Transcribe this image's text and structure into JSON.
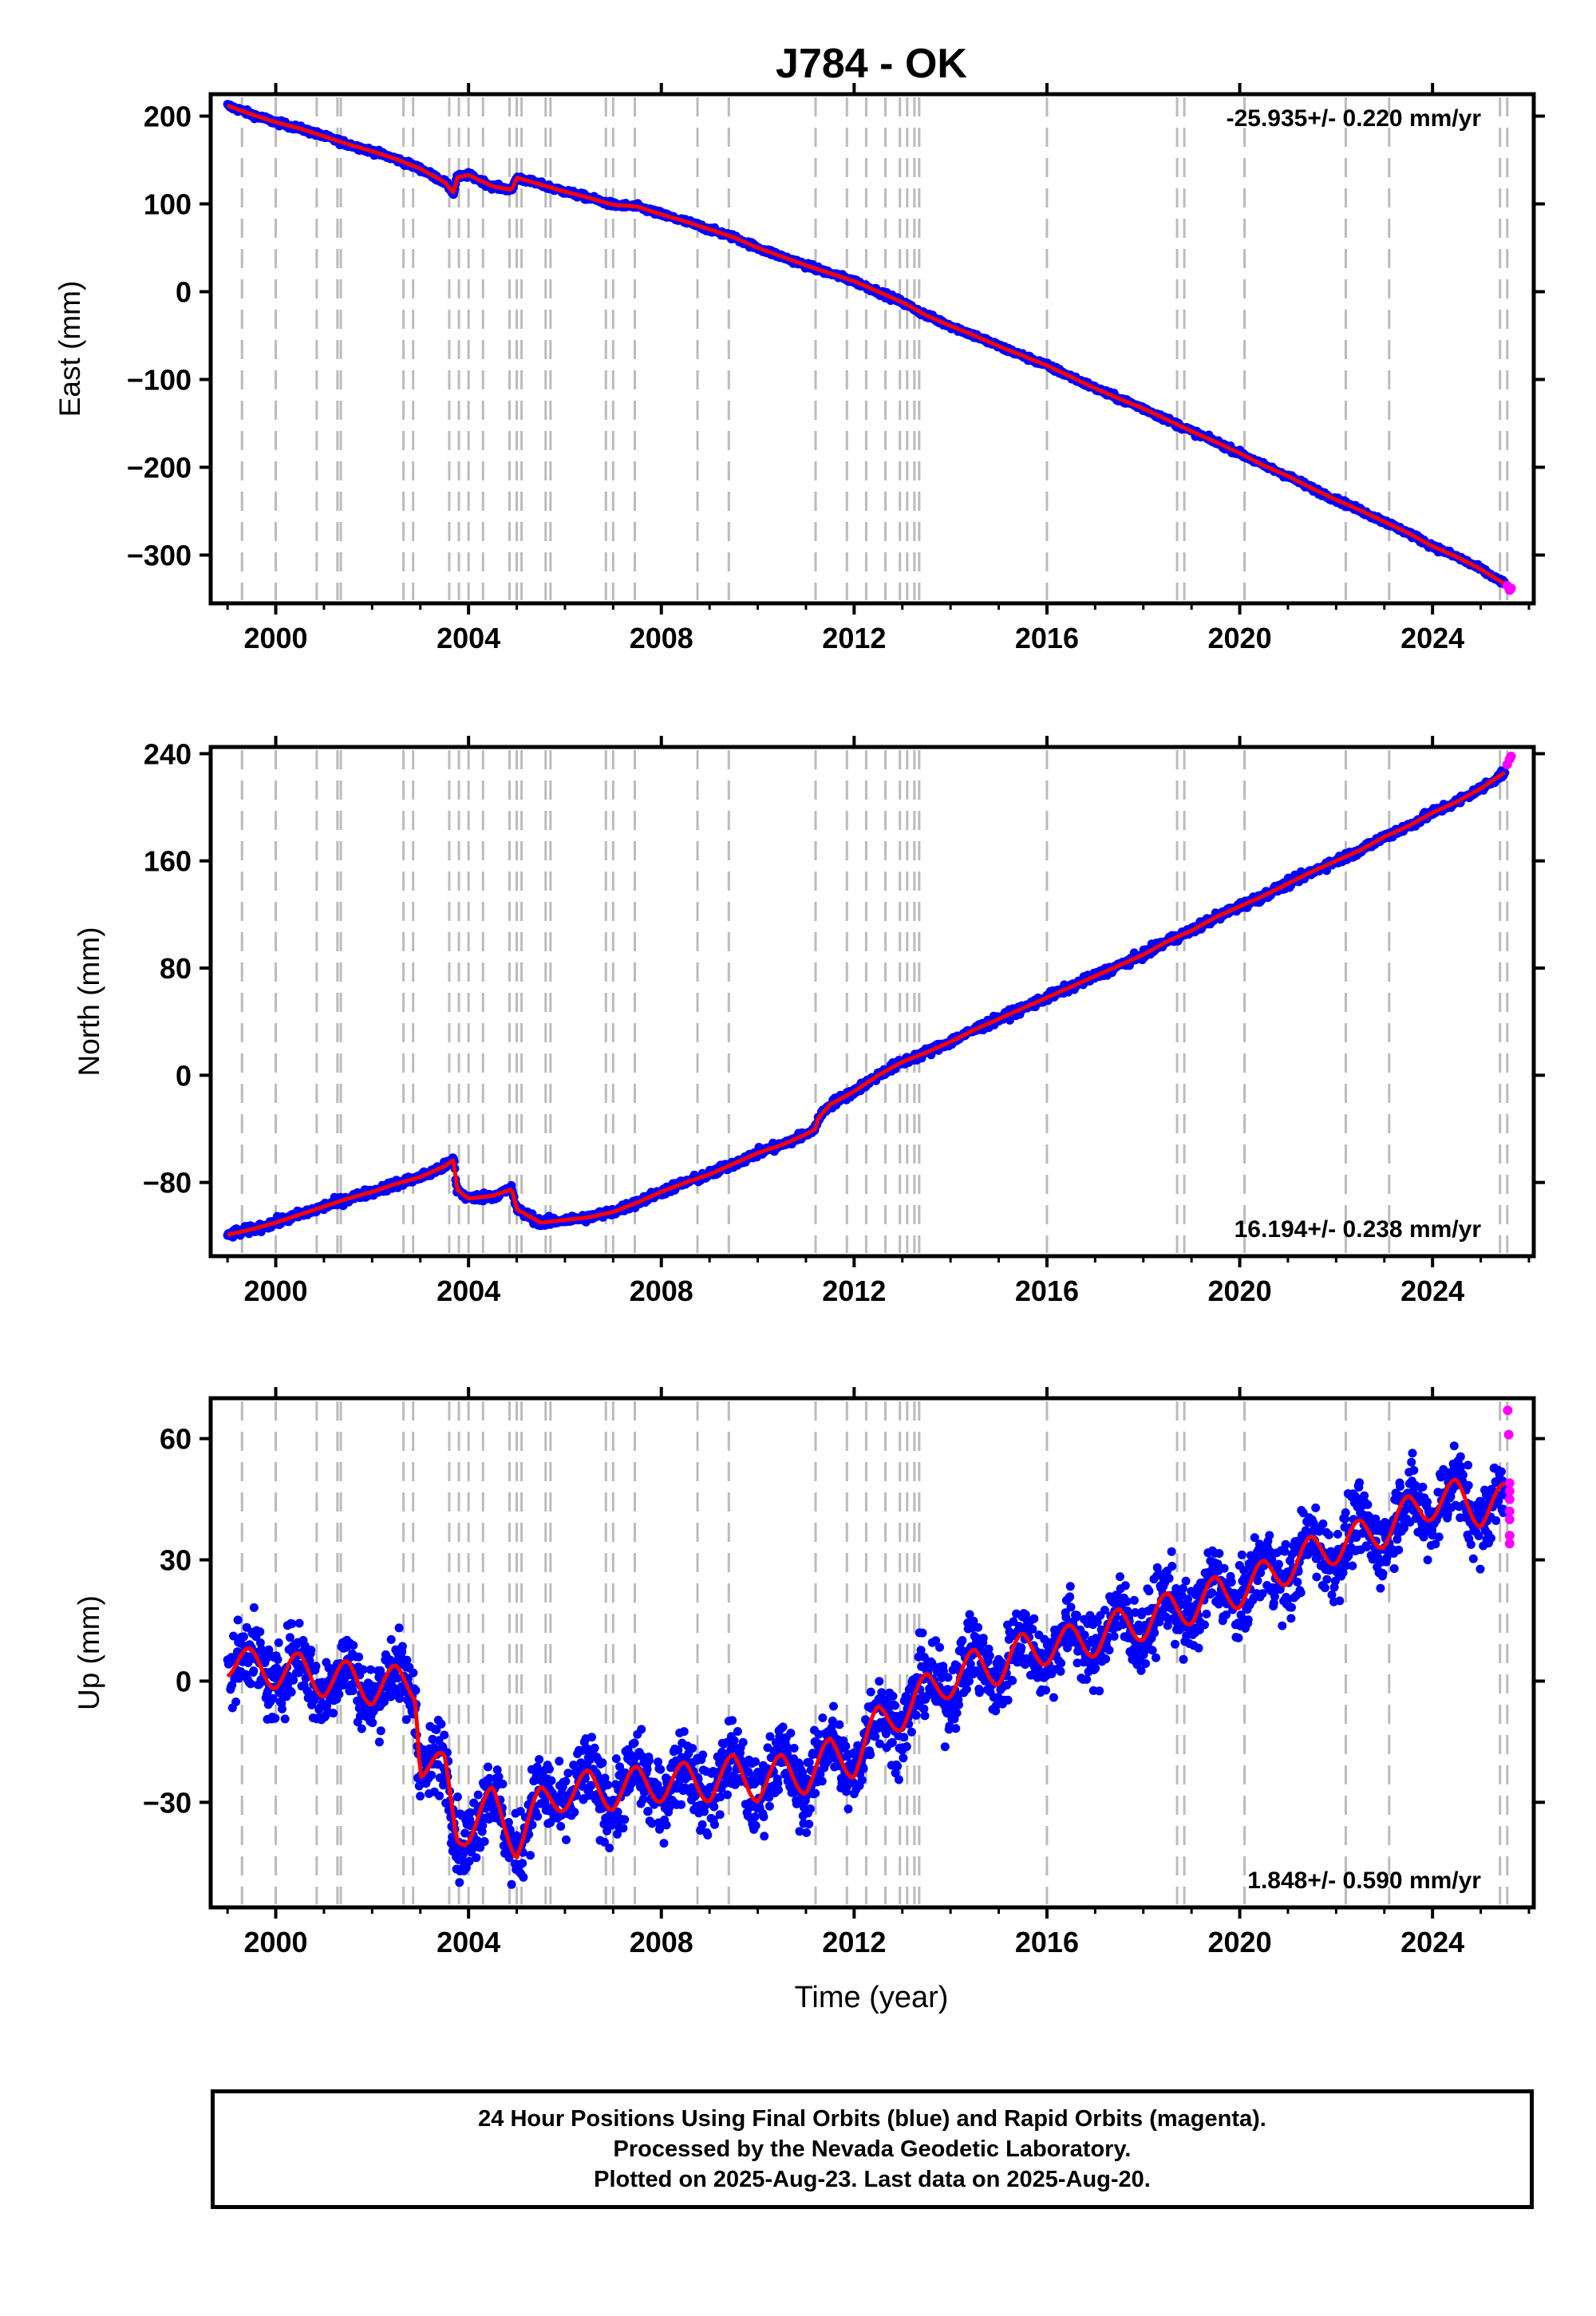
{
  "title": "J784 - OK",
  "xlabel": "Time (year)",
  "footer": {
    "line1": "24 Hour Positions Using Final Orbits (blue) and Rapid Orbits (magenta).",
    "line2": "Processed by the Nevada Geodetic Laboratory.",
    "line3": "Plotted on 2025-Aug-23. Last data on 2025-Aug-20."
  },
  "colors": {
    "final_orbits": "#0000ff",
    "rapid_orbits": "#ff00ff",
    "model": "#ff0000",
    "event_lines": "#bbbbbb",
    "frame": "#000000"
  },
  "chart_data": [
    {
      "type": "scatter",
      "panel": "east",
      "ylabel": "East (mm)",
      "rate_label": "-25.935+/- 0.220 mm/yr",
      "rate_position": "top-right",
      "xlim": [
        1998.65,
        2026.1
      ],
      "ylim": [
        -355,
        225
      ],
      "xticks": [
        2000,
        2004,
        2008,
        2012,
        2016,
        2020,
        2024
      ],
      "xtick_labels": [
        "2000",
        "2004",
        "2008",
        "2012",
        "2016",
        "2020",
        "2024"
      ],
      "yticks": [
        200,
        100,
        0,
        -100,
        -200,
        -300
      ],
      "ytick_labels": [
        "200",
        "100",
        "0",
        "−100",
        "−200",
        "−300"
      ],
      "series": [
        {
          "name": "Final Orbits",
          "x": [
            1999.0,
            1999.5,
            2000.0,
            2000.5,
            2001.0,
            2001.5,
            2002.0,
            2002.5,
            2003.0,
            2003.5,
            2003.7,
            2003.75,
            2004.0,
            2004.5,
            2004.9,
            2005.0,
            2005.5,
            2006.0,
            2006.5,
            2007.0,
            2007.5,
            2008.0,
            2008.5,
            2009.0,
            2009.5,
            2010.0,
            2010.5,
            2011.0,
            2011.5,
            2012.0,
            2012.5,
            2013.0,
            2013.5,
            2014.0,
            2014.5,
            2015.0,
            2015.5,
            2016.0,
            2016.5,
            2017.0,
            2017.5,
            2018.0,
            2018.5,
            2019.0,
            2019.5,
            2020.0,
            2020.5,
            2021.0,
            2021.5,
            2022.0,
            2022.5,
            2023.0,
            2023.5,
            2024.0,
            2024.5,
            2025.0,
            2025.5
          ],
          "y": [
            212,
            202,
            193,
            186,
            177,
            168,
            160,
            151,
            140,
            125,
            112,
            130,
            133,
            120,
            116,
            130,
            122,
            114,
            107,
            99,
            97,
            88,
            80,
            71,
            62,
            50,
            40,
            30,
            21,
            12,
            0,
            -12,
            -27,
            -39,
            -50,
            -62,
            -73,
            -84,
            -97,
            -110,
            -122,
            -133,
            -146,
            -159,
            -171,
            -184,
            -198,
            -210,
            -224,
            -237,
            -249,
            -262,
            -275,
            -290,
            -302,
            -316,
            -333
          ]
        },
        {
          "name": "Rapid Orbits",
          "x": [
            2025.55,
            2025.6,
            2025.63
          ],
          "y": [
            -335,
            -340,
            -338
          ]
        }
      ]
    },
    {
      "type": "scatter",
      "panel": "north",
      "ylabel": "North (mm)",
      "rate_label": "16.194+/- 0.238 mm/yr",
      "rate_position": "bottom-right",
      "xlim": [
        1998.65,
        2026.1
      ],
      "ylim": [
        -135,
        245
      ],
      "xticks": [
        2000,
        2004,
        2008,
        2012,
        2016,
        2020,
        2024
      ],
      "xtick_labels": [
        "2000",
        "2004",
        "2008",
        "2012",
        "2016",
        "2020",
        "2024"
      ],
      "yticks": [
        240,
        160,
        80,
        0,
        -80
      ],
      "ytick_labels": [
        "240",
        "160",
        "80",
        "0",
        "−80"
      ],
      "series": [
        {
          "name": "Final Orbits",
          "x": [
            1999.0,
            1999.5,
            2000.0,
            2000.5,
            2001.0,
            2001.5,
            2002.0,
            2002.5,
            2003.0,
            2003.5,
            2003.7,
            2003.75,
            2004.0,
            2004.5,
            2004.9,
            2005.0,
            2005.5,
            2006.0,
            2006.5,
            2007.0,
            2007.5,
            2008.0,
            2008.5,
            2009.0,
            2009.5,
            2010.0,
            2010.5,
            2011.0,
            2011.2,
            2011.25,
            2011.5,
            2012.0,
            2012.5,
            2013.0,
            2013.5,
            2014.0,
            2014.5,
            2015.0,
            2015.5,
            2016.0,
            2016.5,
            2017.0,
            2017.5,
            2018.0,
            2018.5,
            2019.0,
            2019.5,
            2020.0,
            2020.5,
            2021.0,
            2021.5,
            2022.0,
            2022.5,
            2023.0,
            2023.5,
            2024.0,
            2024.5,
            2025.0,
            2025.5
          ],
          "y": [
            -119,
            -115,
            -110,
            -104,
            -98,
            -92,
            -87,
            -81,
            -76,
            -68,
            -63,
            -85,
            -92,
            -90,
            -85,
            -100,
            -110,
            -108,
            -106,
            -102,
            -95,
            -87,
            -80,
            -74,
            -66,
            -58,
            -52,
            -44,
            -40,
            -32,
            -22,
            -12,
            0,
            10,
            17,
            25,
            34,
            42,
            50,
            58,
            66,
            74,
            82,
            90,
            100,
            108,
            118,
            126,
            134,
            143,
            152,
            160,
            168,
            178,
            186,
            196,
            204,
            214,
            226
          ]
        },
        {
          "name": "Rapid Orbits",
          "x": [
            2025.55,
            2025.6,
            2025.63
          ],
          "y": [
            232,
            236,
            238
          ]
        }
      ]
    },
    {
      "type": "scatter",
      "panel": "up",
      "ylabel": "Up (mm)",
      "rate_label": "1.848+/- 0.590 mm/yr",
      "rate_position": "bottom-right",
      "xlim": [
        1998.65,
        2026.1
      ],
      "ylim": [
        -56,
        70
      ],
      "xticks": [
        2000,
        2004,
        2008,
        2012,
        2016,
        2020,
        2024
      ],
      "xtick_labels": [
        "2000",
        "2004",
        "2008",
        "2012",
        "2016",
        "2020",
        "2024"
      ],
      "yticks": [
        60,
        30,
        0,
        -30
      ],
      "ytick_labels": [
        "60",
        "30",
        "0",
        "−30"
      ],
      "series": [
        {
          "name": "Final Orbits",
          "x": [
            1999.0,
            1999.5,
            2000.0,
            2000.5,
            2001.0,
            2001.5,
            2002.0,
            2002.5,
            2002.9,
            2003.0,
            2003.5,
            2003.75,
            2004.0,
            2004.5,
            2005.0,
            2005.5,
            2006.0,
            2006.5,
            2007.0,
            2007.5,
            2008.0,
            2008.5,
            2009.0,
            2009.5,
            2010.0,
            2010.5,
            2011.0,
            2011.5,
            2012.0,
            2012.5,
            2013.0,
            2013.5,
            2014.0,
            2014.5,
            2015.0,
            2015.5,
            2016.0,
            2016.5,
            2017.0,
            2017.5,
            2018.0,
            2018.5,
            2019.0,
            2019.5,
            2020.0,
            2020.5,
            2021.0,
            2021.5,
            2022.0,
            2022.5,
            2023.0,
            2023.5,
            2024.0,
            2024.5,
            2025.0,
            2025.5
          ],
          "y": [
            5,
            4,
            2,
            3,
            0,
            1,
            -2,
            0,
            -1,
            -20,
            -22,
            -38,
            -36,
            -30,
            -40,
            -30,
            -28,
            -26,
            -28,
            -25,
            -26,
            -24,
            -26,
            -22,
            -26,
            -22,
            -24,
            -18,
            -20,
            -10,
            -8,
            -2,
            0,
            4,
            3,
            8,
            8,
            10,
            10,
            14,
            14,
            18,
            18,
            22,
            22,
            26,
            28,
            32,
            33,
            36,
            37,
            42,
            44,
            46,
            42,
            45
          ]
        },
        {
          "name": "Rapid Orbits",
          "x": [
            2025.56,
            2025.58,
            2025.6,
            2025.6,
            2025.6,
            2025.6,
            2025.6,
            2025.6,
            2025.6
          ],
          "y": [
            67,
            61,
            49,
            47,
            45,
            42,
            40,
            36,
            34
          ]
        }
      ]
    }
  ],
  "event_lines": [
    1999.3,
    2000.0,
    2000.85,
    2001.28,
    2001.35,
    2002.65,
    2002.85,
    2003.6,
    2003.8,
    2004.0,
    2004.3,
    2004.85,
    2005.0,
    2005.1,
    2005.6,
    2005.7,
    2006.85,
    2007.0,
    2007.45,
    2008.75,
    2009.4,
    2011.2,
    2011.85,
    2012.25,
    2012.65,
    2012.95,
    2013.1,
    2013.25,
    2013.35,
    2016.0,
    2018.7,
    2018.85,
    2020.1,
    2022.2,
    2023.1,
    2025.4,
    2025.55
  ]
}
